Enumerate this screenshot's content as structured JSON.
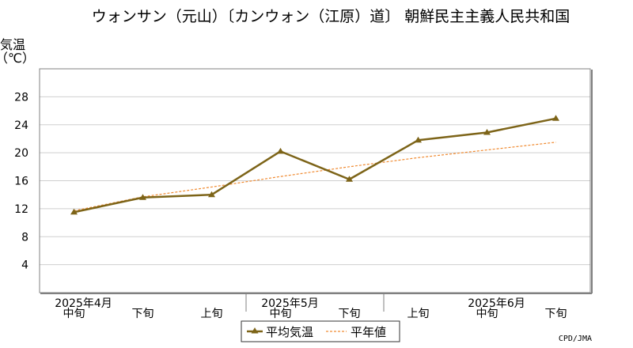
{
  "colors": {
    "series_line": "#7d6418",
    "normal_line": "#f08a30",
    "grid": "#cfcfcf",
    "axis": "#808080"
  },
  "chart_data": {
    "type": "line",
    "title": "ウォンサン（元山）〔カンウォン（江原）道〕 朝鮮民主主義人民共和国",
    "ylabel_line1": "気温",
    "ylabel_line2": "（℃）",
    "ylim": [
      0,
      32
    ],
    "yticks": [
      4,
      8,
      12,
      16,
      20,
      24,
      28
    ],
    "grid": true,
    "legend_position": "bottom-center",
    "categories": [
      "中旬",
      "下旬",
      "上旬",
      "中旬",
      "下旬",
      "上旬",
      "中旬",
      "下旬"
    ],
    "month_labels": [
      {
        "label": "2025年4月",
        "at_index": 0
      },
      {
        "label": "2025年5月",
        "at_index": 3
      },
      {
        "label": "2025年6月",
        "at_index": 6
      }
    ],
    "series": [
      {
        "name": "平均気温",
        "style": "solid-triangle",
        "values": [
          11.5,
          13.6,
          14.0,
          20.2,
          16.2,
          21.8,
          22.9,
          24.9
        ]
      },
      {
        "name": "平年値",
        "style": "dashed",
        "values": [
          11.7,
          13.7,
          15.1,
          16.6,
          18.0,
          19.3,
          20.4,
          21.5
        ]
      }
    ],
    "credit": "CPD/JMA"
  }
}
